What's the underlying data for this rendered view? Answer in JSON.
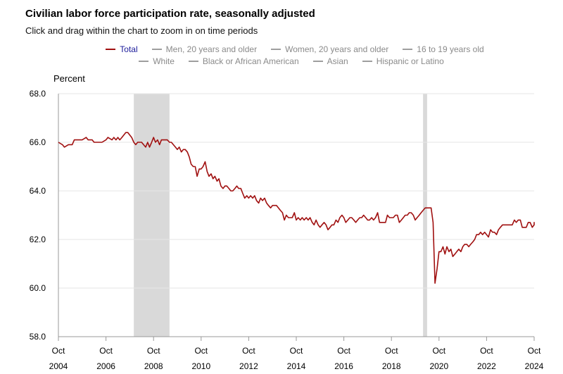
{
  "title": "Civilian labor force participation rate, seasonally adjusted",
  "subtitle": "Click and drag within the chart to zoom in on time periods",
  "legend": {
    "row1": [
      {
        "label": "Total",
        "active": true
      },
      {
        "label": "Men, 20 years and older",
        "active": false
      },
      {
        "label": "Women, 20 years and older",
        "active": false
      },
      {
        "label": "16 to 19 years old",
        "active": false
      }
    ],
    "row2": [
      {
        "label": "White",
        "active": false
      },
      {
        "label": "Black or African American",
        "active": false
      },
      {
        "label": "Asian",
        "active": false
      },
      {
        "label": "Hispanic or Latino",
        "active": false
      }
    ]
  },
  "colors": {
    "series": "#a01010",
    "recession": "#d9d9d9",
    "grid": "#e6e6e6",
    "axis": "#999999"
  },
  "chart_data": {
    "type": "line",
    "title": "Civilian labor force participation rate, seasonally adjusted",
    "ylabel": "Percent",
    "xlabel": "",
    "ylim": [
      58.0,
      68.0
    ],
    "yticks": [
      "68.0",
      "66.0",
      "64.0",
      "62.0",
      "60.0",
      "58.0"
    ],
    "xlim": [
      2004.75,
      2024.75
    ],
    "xticks": [
      {
        "month": "Oct",
        "year": "2004",
        "x": 2004.75
      },
      {
        "month": "Oct",
        "year": "2006",
        "x": 2006.75
      },
      {
        "month": "Oct",
        "year": "2008",
        "x": 2008.75
      },
      {
        "month": "Oct",
        "year": "2010",
        "x": 2010.75
      },
      {
        "month": "Oct",
        "year": "2012",
        "x": 2012.75
      },
      {
        "month": "Oct",
        "year": "2014",
        "x": 2014.75
      },
      {
        "month": "Oct",
        "year": "2016",
        "x": 2016.75
      },
      {
        "month": "Oct",
        "year": "2018",
        "x": 2018.75
      },
      {
        "month": "Oct",
        "year": "2020",
        "x": 2020.75
      },
      {
        "month": "Oct",
        "year": "2022",
        "x": 2022.75
      },
      {
        "month": "Oct",
        "year": "2024",
        "x": 2024.75
      }
    ],
    "recessions": [
      {
        "start": 2007.92,
        "end": 2009.42
      },
      {
        "start": 2020.08,
        "end": 2020.25
      }
    ],
    "grid": true,
    "series": [
      {
        "name": "Total",
        "points": [
          [
            2004.75,
            66.0
          ],
          [
            2004.92,
            65.9
          ],
          [
            2005.0,
            65.8
          ],
          [
            2005.17,
            65.9
          ],
          [
            2005.33,
            65.9
          ],
          [
            2005.42,
            66.1
          ],
          [
            2005.58,
            66.1
          ],
          [
            2005.75,
            66.1
          ],
          [
            2005.92,
            66.2
          ],
          [
            2006.0,
            66.1
          ],
          [
            2006.17,
            66.1
          ],
          [
            2006.25,
            66.0
          ],
          [
            2006.42,
            66.0
          ],
          [
            2006.58,
            66.0
          ],
          [
            2006.75,
            66.1
          ],
          [
            2006.83,
            66.2
          ],
          [
            2007.0,
            66.1
          ],
          [
            2007.08,
            66.2
          ],
          [
            2007.17,
            66.1
          ],
          [
            2007.25,
            66.2
          ],
          [
            2007.33,
            66.1
          ],
          [
            2007.42,
            66.2
          ],
          [
            2007.5,
            66.3
          ],
          [
            2007.58,
            66.4
          ],
          [
            2007.67,
            66.4
          ],
          [
            2007.75,
            66.3
          ],
          [
            2007.83,
            66.2
          ],
          [
            2007.92,
            66.0
          ],
          [
            2008.0,
            65.9
          ],
          [
            2008.08,
            66.0
          ],
          [
            2008.17,
            66.0
          ],
          [
            2008.25,
            66.0
          ],
          [
            2008.33,
            65.9
          ],
          [
            2008.42,
            65.8
          ],
          [
            2008.5,
            66.0
          ],
          [
            2008.58,
            65.8
          ],
          [
            2008.67,
            66.0
          ],
          [
            2008.75,
            66.2
          ],
          [
            2008.83,
            66.0
          ],
          [
            2008.92,
            66.1
          ],
          [
            2009.0,
            65.9
          ],
          [
            2009.08,
            66.1
          ],
          [
            2009.17,
            66.1
          ],
          [
            2009.25,
            66.1
          ],
          [
            2009.33,
            66.1
          ],
          [
            2009.42,
            66.0
          ],
          [
            2009.5,
            66.0
          ],
          [
            2009.58,
            65.9
          ],
          [
            2009.67,
            65.8
          ],
          [
            2009.75,
            65.7
          ],
          [
            2009.83,
            65.8
          ],
          [
            2009.92,
            65.6
          ],
          [
            2010.0,
            65.7
          ],
          [
            2010.08,
            65.7
          ],
          [
            2010.17,
            65.6
          ],
          [
            2010.25,
            65.4
          ],
          [
            2010.33,
            65.1
          ],
          [
            2010.42,
            65.0
          ],
          [
            2010.5,
            65.0
          ],
          [
            2010.58,
            64.6
          ],
          [
            2010.67,
            64.9
          ],
          [
            2010.75,
            64.9
          ],
          [
            2010.83,
            65.0
          ],
          [
            2010.92,
            65.2
          ],
          [
            2011.0,
            64.8
          ],
          [
            2011.08,
            64.6
          ],
          [
            2011.17,
            64.7
          ],
          [
            2011.25,
            64.5
          ],
          [
            2011.33,
            64.6
          ],
          [
            2011.42,
            64.4
          ],
          [
            2011.5,
            64.5
          ],
          [
            2011.58,
            64.2
          ],
          [
            2011.67,
            64.1
          ],
          [
            2011.75,
            64.2
          ],
          [
            2011.83,
            64.2
          ],
          [
            2011.92,
            64.1
          ],
          [
            2012.0,
            64.0
          ],
          [
            2012.08,
            64.0
          ],
          [
            2012.17,
            64.1
          ],
          [
            2012.25,
            64.2
          ],
          [
            2012.33,
            64.1
          ],
          [
            2012.42,
            64.1
          ],
          [
            2012.5,
            63.9
          ],
          [
            2012.58,
            63.7
          ],
          [
            2012.67,
            63.8
          ],
          [
            2012.75,
            63.7
          ],
          [
            2012.83,
            63.8
          ],
          [
            2012.92,
            63.7
          ],
          [
            2013.0,
            63.8
          ],
          [
            2013.08,
            63.6
          ],
          [
            2013.17,
            63.5
          ],
          [
            2013.25,
            63.7
          ],
          [
            2013.33,
            63.6
          ],
          [
            2013.42,
            63.7
          ],
          [
            2013.5,
            63.5
          ],
          [
            2013.58,
            63.4
          ],
          [
            2013.67,
            63.3
          ],
          [
            2013.75,
            63.4
          ],
          [
            2013.83,
            63.4
          ],
          [
            2013.92,
            63.4
          ],
          [
            2014.0,
            63.3
          ],
          [
            2014.08,
            63.2
          ],
          [
            2014.17,
            63.1
          ],
          [
            2014.25,
            62.8
          ],
          [
            2014.33,
            63.0
          ],
          [
            2014.42,
            62.9
          ],
          [
            2014.5,
            62.9
          ],
          [
            2014.58,
            62.9
          ],
          [
            2014.67,
            63.1
          ],
          [
            2014.75,
            62.8
          ],
          [
            2014.83,
            62.9
          ],
          [
            2014.92,
            62.8
          ],
          [
            2015.0,
            62.9
          ],
          [
            2015.08,
            62.8
          ],
          [
            2015.17,
            62.9
          ],
          [
            2015.25,
            62.8
          ],
          [
            2015.33,
            62.9
          ],
          [
            2015.42,
            62.7
          ],
          [
            2015.5,
            62.6
          ],
          [
            2015.58,
            62.8
          ],
          [
            2015.67,
            62.6
          ],
          [
            2015.75,
            62.5
          ],
          [
            2015.83,
            62.6
          ],
          [
            2015.92,
            62.7
          ],
          [
            2016.0,
            62.6
          ],
          [
            2016.08,
            62.4
          ],
          [
            2016.17,
            62.5
          ],
          [
            2016.25,
            62.6
          ],
          [
            2016.33,
            62.6
          ],
          [
            2016.42,
            62.8
          ],
          [
            2016.5,
            62.7
          ],
          [
            2016.58,
            62.9
          ],
          [
            2016.67,
            63.0
          ],
          [
            2016.75,
            62.9
          ],
          [
            2016.83,
            62.7
          ],
          [
            2016.92,
            62.8
          ],
          [
            2017.0,
            62.9
          ],
          [
            2017.08,
            62.9
          ],
          [
            2017.17,
            62.8
          ],
          [
            2017.25,
            62.7
          ],
          [
            2017.33,
            62.8
          ],
          [
            2017.42,
            62.9
          ],
          [
            2017.5,
            62.9
          ],
          [
            2017.58,
            63.0
          ],
          [
            2017.67,
            62.9
          ],
          [
            2017.75,
            62.8
          ],
          [
            2017.83,
            62.8
          ],
          [
            2017.92,
            62.9
          ],
          [
            2018.0,
            62.8
          ],
          [
            2018.08,
            62.9
          ],
          [
            2018.17,
            63.1
          ],
          [
            2018.25,
            62.7
          ],
          [
            2018.33,
            62.7
          ],
          [
            2018.42,
            62.7
          ],
          [
            2018.5,
            62.7
          ],
          [
            2018.58,
            63.0
          ],
          [
            2018.67,
            62.9
          ],
          [
            2018.75,
            62.9
          ],
          [
            2018.83,
            62.9
          ],
          [
            2018.92,
            63.0
          ],
          [
            2019.0,
            63.0
          ],
          [
            2019.08,
            62.7
          ],
          [
            2019.17,
            62.8
          ],
          [
            2019.25,
            62.9
          ],
          [
            2019.33,
            63.0
          ],
          [
            2019.42,
            63.0
          ],
          [
            2019.5,
            63.1
          ],
          [
            2019.58,
            63.1
          ],
          [
            2019.67,
            63.0
          ],
          [
            2019.75,
            62.8
          ],
          [
            2019.83,
            62.9
          ],
          [
            2019.92,
            63.0
          ],
          [
            2020.0,
            63.1
          ],
          [
            2020.08,
            63.2
          ],
          [
            2020.17,
            63.3
          ],
          [
            2020.25,
            63.3
          ],
          [
            2020.33,
            63.3
          ],
          [
            2020.42,
            63.3
          ],
          [
            2020.5,
            62.7
          ],
          [
            2020.58,
            60.2
          ],
          [
            2020.67,
            60.8
          ],
          [
            2020.75,
            61.5
          ],
          [
            2020.83,
            61.5
          ],
          [
            2020.92,
            61.7
          ],
          [
            2021.0,
            61.4
          ],
          [
            2021.08,
            61.7
          ],
          [
            2021.17,
            61.5
          ],
          [
            2021.25,
            61.6
          ],
          [
            2021.33,
            61.3
          ],
          [
            2021.42,
            61.4
          ],
          [
            2021.5,
            61.5
          ],
          [
            2021.58,
            61.6
          ],
          [
            2021.67,
            61.5
          ],
          [
            2021.75,
            61.7
          ],
          [
            2021.83,
            61.8
          ],
          [
            2021.92,
            61.8
          ],
          [
            2022.0,
            61.7
          ],
          [
            2022.08,
            61.8
          ],
          [
            2022.17,
            61.9
          ],
          [
            2022.25,
            62.0
          ],
          [
            2022.33,
            62.2
          ],
          [
            2022.42,
            62.2
          ],
          [
            2022.5,
            62.3
          ],
          [
            2022.58,
            62.2
          ],
          [
            2022.67,
            62.3
          ],
          [
            2022.75,
            62.2
          ],
          [
            2022.83,
            62.1
          ],
          [
            2022.92,
            62.4
          ],
          [
            2023.0,
            62.3
          ],
          [
            2023.08,
            62.3
          ],
          [
            2023.17,
            62.2
          ],
          [
            2023.25,
            62.4
          ],
          [
            2023.33,
            62.5
          ],
          [
            2023.42,
            62.6
          ],
          [
            2023.5,
            62.6
          ],
          [
            2023.58,
            62.6
          ],
          [
            2023.67,
            62.6
          ],
          [
            2023.75,
            62.6
          ],
          [
            2023.83,
            62.6
          ],
          [
            2023.92,
            62.8
          ],
          [
            2024.0,
            62.7
          ],
          [
            2024.08,
            62.8
          ],
          [
            2024.17,
            62.8
          ],
          [
            2024.25,
            62.5
          ],
          [
            2024.33,
            62.5
          ],
          [
            2024.42,
            62.5
          ],
          [
            2024.5,
            62.7
          ],
          [
            2024.58,
            62.7
          ],
          [
            2024.67,
            62.5
          ],
          [
            2024.75,
            62.6
          ],
          [
            2024.83,
            62.7
          ],
          [
            2024.92,
            62.7
          ],
          [
            2025.0,
            62.7
          ],
          [
            2025.08,
            62.6
          ]
        ]
      }
    ]
  }
}
